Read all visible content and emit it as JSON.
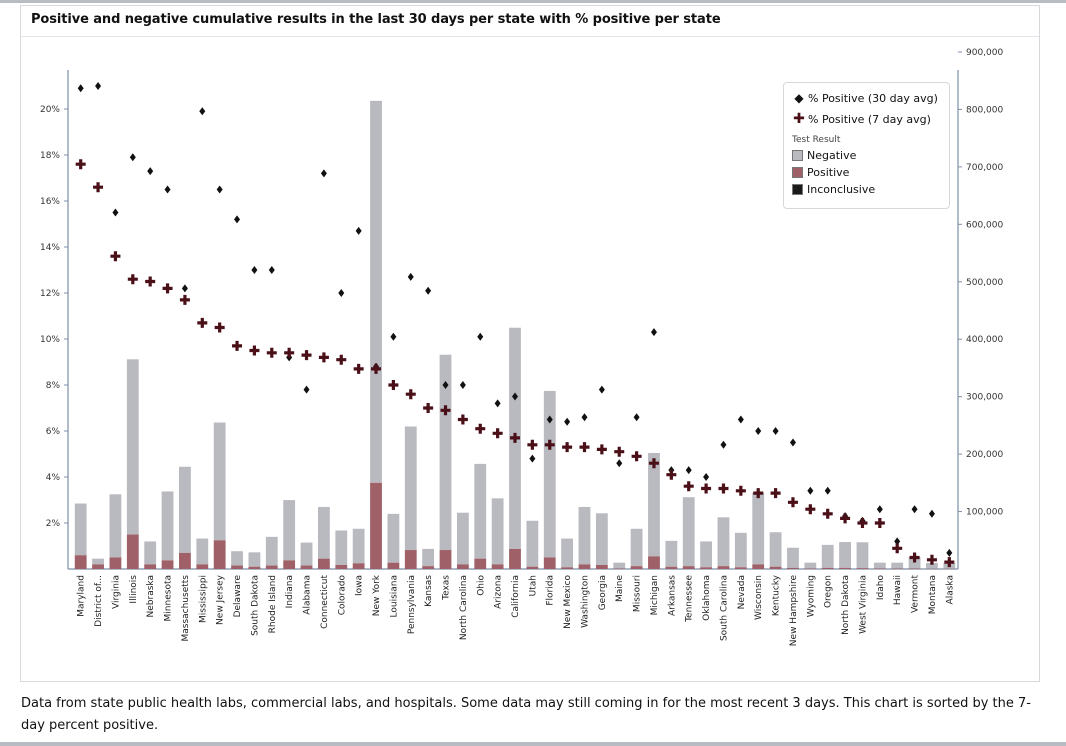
{
  "title": "Positive and negative cumulative results in the last 30 days per state with % positive per state",
  "footnote": "Data from state public health labs, commercial labs, and hospitals. Some data may still coming in for the most recent 3 days. This chart is sorted by the 7-day percent positive.",
  "legend": {
    "pct30": "% Positive (30 day avg)",
    "pct7": "% Positive (7 day avg)",
    "heading": "Test Result",
    "negative": "Negative",
    "positive": "Positive",
    "inconclusive": "Inconclusive"
  },
  "colors": {
    "negative": "#b9bac0",
    "positive": "#a06068",
    "inconclusive": "#1a1a1a",
    "pct7": "#4a0f17",
    "pct30": "#111111"
  },
  "chart_data": {
    "type": "bar",
    "categories": [
      "Maryland",
      "District of...",
      "Virginia",
      "Illinois",
      "Nebraska",
      "Minnesota",
      "Massachusetts",
      "Mississippi",
      "New Jersey",
      "Delaware",
      "South Dakota",
      "Rhode Island",
      "Indiana",
      "Alabama",
      "Connecticut",
      "Colorado",
      "Iowa",
      "New York",
      "Louisiana",
      "Pennsylvania",
      "Kansas",
      "Texas",
      "North Carolina",
      "Ohio",
      "Arizona",
      "California",
      "Utah",
      "Florida",
      "New Mexico",
      "Washington",
      "Georgia",
      "Maine",
      "Missouri",
      "Michigan",
      "Arkansas",
      "Tennessee",
      "Oklahoma",
      "South Carolina",
      "Nevada",
      "Wisconsin",
      "Kentucky",
      "New Hampshire",
      "Wyoming",
      "Oregon",
      "North Dakota",
      "West Virginia",
      "Idaho",
      "Hawaii",
      "Vermont",
      "Montana",
      "Alaska"
    ],
    "y_left_ticks": [
      "2%",
      "4%",
      "6%",
      "8%",
      "10%",
      "12%",
      "14%",
      "16%",
      "18%",
      "20%"
    ],
    "y_right_ticks": [
      "100,000",
      "200,000",
      "300,000",
      "400,000",
      "500,000",
      "600,000",
      "700,000",
      "800,000",
      "900,000"
    ],
    "ylim_left": [
      0,
      22
    ],
    "ylim_right": [
      0,
      900000
    ],
    "legend_position": "top-right",
    "series": [
      {
        "name": "Negative",
        "kind": "bar",
        "axis": "right",
        "values": [
          90000,
          10000,
          110000,
          305000,
          40000,
          120000,
          150000,
          45000,
          205000,
          25000,
          25000,
          50000,
          105000,
          40000,
          90000,
          60000,
          60000,
          665000,
          85000,
          215000,
          30000,
          340000,
          90000,
          165000,
          115000,
          385000,
          80000,
          290000,
          50000,
          100000,
          90000,
          10000,
          65000,
          180000,
          45000,
          120000,
          45000,
          85000,
          60000,
          125000,
          60000,
          35000,
          10000,
          40000,
          45000,
          45000,
          10000,
          10000,
          20000,
          10000,
          10000
        ]
      },
      {
        "name": "Positive",
        "kind": "bar",
        "axis": "right",
        "values": [
          24000,
          8000,
          20000,
          60000,
          8000,
          15000,
          28000,
          8000,
          50000,
          6000,
          4000,
          6000,
          15000,
          6000,
          18000,
          7000,
          10000,
          150000,
          11000,
          33000,
          5000,
          33000,
          8000,
          18000,
          8000,
          35000,
          4000,
          20000,
          3000,
          8000,
          7000,
          1000,
          5000,
          22000,
          4000,
          5000,
          3000,
          5000,
          3000,
          8000,
          4000,
          2000,
          1000,
          2000,
          2000,
          1500,
          1000,
          1000,
          1000,
          500,
          500
        ]
      },
      {
        "name": "% Positive (30 day avg)",
        "kind": "marker",
        "axis": "left",
        "values": [
          20.9,
          21.0,
          15.5,
          17.9,
          17.3,
          16.5,
          12.2,
          19.9,
          16.5,
          15.2,
          13.0,
          13.0,
          9.2,
          7.8,
          17.2,
          12.0,
          14.7,
          8.8,
          10.1,
          12.7,
          12.1,
          8.0,
          8.0,
          10.1,
          7.2,
          7.5,
          4.8,
          6.5,
          6.4,
          6.6,
          7.8,
          4.6,
          6.6,
          10.3,
          4.3,
          4.3,
          4.0,
          5.4,
          6.5,
          6.0,
          6.0,
          5.5,
          3.4,
          3.4,
          2.3,
          2.1,
          2.6,
          1.2,
          2.6,
          2.4,
          0.7
        ]
      },
      {
        "name": "% Positive (7 day avg)",
        "kind": "marker",
        "axis": "left",
        "values": [
          17.6,
          16.6,
          13.6,
          12.6,
          12.5,
          12.2,
          11.7,
          10.7,
          10.5,
          9.7,
          9.5,
          9.4,
          9.4,
          9.3,
          9.2,
          9.1,
          8.7,
          8.7,
          8.0,
          7.6,
          7.0,
          6.9,
          6.5,
          6.1,
          5.9,
          5.7,
          5.4,
          5.4,
          5.3,
          5.3,
          5.2,
          5.1,
          4.9,
          4.6,
          4.1,
          3.6,
          3.5,
          3.5,
          3.4,
          3.3,
          3.3,
          2.9,
          2.6,
          2.4,
          2.2,
          2.0,
          2.0,
          0.9,
          0.5,
          0.4,
          0.3
        ]
      }
    ]
  }
}
